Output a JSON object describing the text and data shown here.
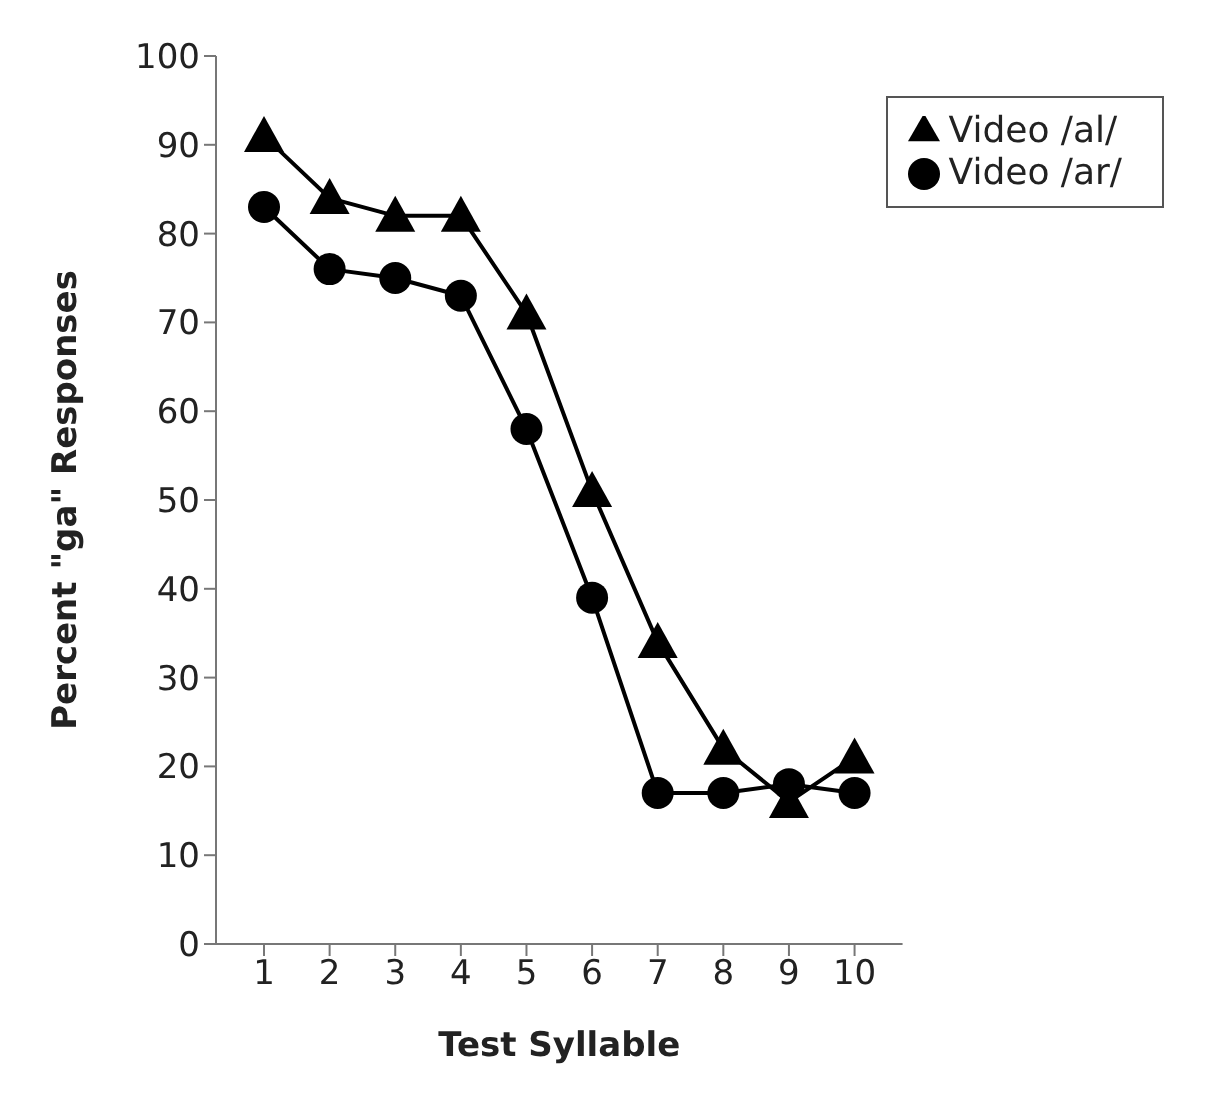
{
  "chart_data": {
    "type": "line",
    "xlabel": "Test Syllable",
    "ylabel": "Percent \"ga\" Responses",
    "categories": [
      "1",
      "2",
      "3",
      "4",
      "5",
      "6",
      "7",
      "8",
      "9",
      "10"
    ],
    "series": [
      {
        "name": "Video /al/",
        "color": "#000000",
        "marker": "triangle",
        "values": [
          91,
          84,
          82,
          82,
          71,
          51,
          34,
          22,
          16,
          21
        ]
      },
      {
        "name": "Video /ar/",
        "color": "#000000",
        "marker": "circle",
        "values": [
          83,
          76,
          75,
          73,
          58,
          39,
          17,
          17,
          18,
          17
        ]
      }
    ],
    "ylim": [
      0,
      100
    ],
    "yticks": [
      0,
      10,
      20,
      30,
      40,
      50,
      60,
      70,
      80,
      90,
      100
    ],
    "grid": false,
    "legend": "top right",
    "line_style": "solid"
  }
}
